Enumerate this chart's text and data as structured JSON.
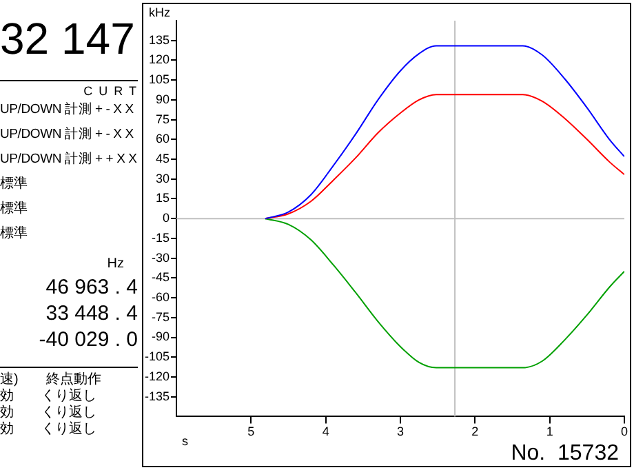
{
  "chart_data": {
    "type": "line",
    "ylabel": "kHz",
    "xlabel": "s",
    "x": [
      4.81,
      4.5,
      4.2,
      3.9,
      3.6,
      3.3,
      3.0,
      2.75,
      2.52,
      1.36,
      1.1,
      0.8,
      0.5,
      0.2,
      0
    ],
    "series": [
      {
        "color": "#0000ff",
        "values": [
          0,
          5,
          18,
          40,
          64,
          90,
          112,
          125,
          131,
          131,
          124,
          106,
          84,
          60,
          47
        ]
      },
      {
        "color": "#ff0000",
        "values": [
          0,
          3.6,
          13,
          29,
          46,
          65,
          80,
          90,
          94,
          94,
          89,
          76,
          60,
          43,
          33.4
        ]
      },
      {
        "color": "#00a000",
        "values": [
          0,
          -4.4,
          -16,
          -35,
          -56,
          -78,
          -97,
          -109,
          -113,
          -113,
          -108,
          -92,
          -73,
          -52,
          -40
        ]
      }
    ],
    "xlim": [
      6,
      0
    ],
    "xticks": [
      5,
      4,
      3,
      2,
      1,
      0
    ],
    "ylim": [
      -150,
      150
    ],
    "yticks": [
      -135,
      -120,
      -105,
      -90,
      -75,
      -60,
      -45,
      -30,
      -15,
      0,
      15,
      30,
      45,
      60,
      75,
      90,
      105,
      120,
      135
    ],
    "grid": false,
    "legend": false,
    "marker": "none",
    "line_style": "solid",
    "ref_lines": [
      {
        "axis": "y",
        "value": 0,
        "color": "#c0c0c0"
      },
      {
        "axis": "x",
        "value": 2.27,
        "color": "#c0c0c0"
      }
    ],
    "annotations": [
      "No.  15732",
      "32 147",
      "C U R T",
      "UP/DOWN 計測 + - X X",
      "UP/DOWN 計測 + - X X",
      "UP/DOWN 計測 + + X X",
      "標準",
      "標準",
      "標準",
      "Hz",
      "46 963 . 4",
      "33 448 . 4",
      "-40 029 . 0",
      "速)　　終点動作",
      "効　　くり返し",
      "効　　くり返し",
      "効　　くり返し"
    ]
  }
}
